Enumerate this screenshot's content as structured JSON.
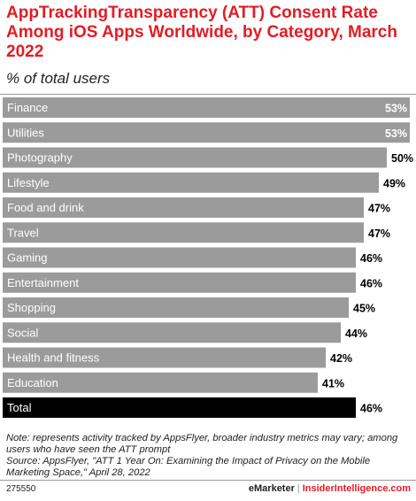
{
  "title": "AppTrackingTransparency (ATT) Consent Rate Among iOS Apps Worldwide, by Category, March 2022",
  "subtitle": "% of total users",
  "note": "Note: represents activity tracked by AppsFlyer, broader industry metrics may vary; among users who have seen the ATT prompt",
  "source": "Source: AppsFlyer, \"ATT 1 Year On: Examining the Impact of Privacy on the Mobile Marketing Space,\" April 28, 2022",
  "footer": {
    "id": "275550",
    "brand": "eMarketer",
    "separator": "|",
    "brand2": "InsiderIntelligence.com"
  },
  "colors": {
    "title": "#e31c25",
    "bar": "#9b9b9b",
    "total_bar": "#000000",
    "label_text": "#ffffff",
    "value_text": "#000000"
  },
  "chart_data": {
    "type": "bar",
    "orientation": "horizontal",
    "categories": [
      "Finance",
      "Utilities",
      "Photography",
      "Lifestyle",
      "Food and drink",
      "Travel",
      "Gaming",
      "Entertainment",
      "Shopping",
      "Social",
      "Health and fitness",
      "Education",
      "Total"
    ],
    "values": [
      53,
      53,
      50,
      49,
      47,
      47,
      46,
      46,
      45,
      44,
      42,
      41,
      46
    ],
    "value_labels": [
      "53%",
      "53%",
      "50%",
      "49%",
      "47%",
      "47%",
      "46%",
      "46%",
      "45%",
      "44%",
      "42%",
      "41%",
      "46%"
    ],
    "highlight": "Total",
    "xlim": [
      0,
      53
    ],
    "grid": false,
    "legend": "none"
  }
}
